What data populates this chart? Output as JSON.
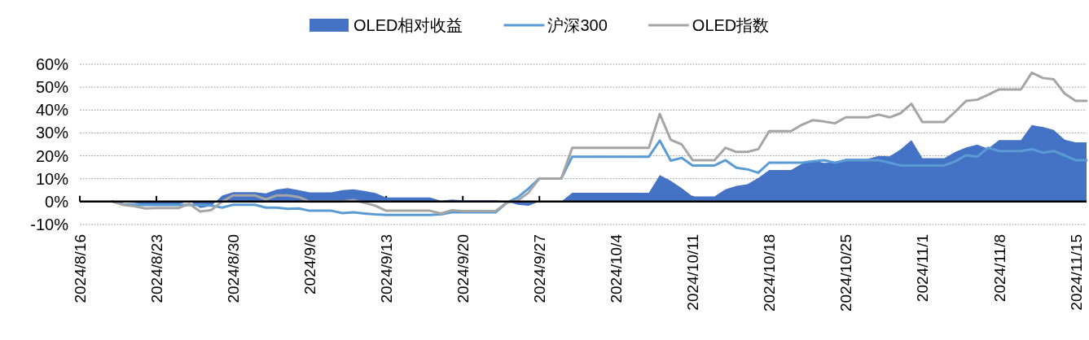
{
  "chart_data": {
    "type": "line",
    "x": [
      "2024-08-19",
      "2024-08-20",
      "2024-08-21",
      "2024-08-22",
      "2024-08-23",
      "2024-08-25",
      "2024-08-26",
      "2024-08-27",
      "2024-08-28",
      "2024-08-29",
      "2024-08-30",
      "2024-09-01",
      "2024-09-02",
      "2024-09-03",
      "2024-09-04",
      "2024-09-05",
      "2024-09-06",
      "2024-09-08",
      "2024-09-09",
      "2024-09-10",
      "2024-09-11",
      "2024-09-12",
      "2024-09-13",
      "2024-09-17",
      "2024-09-18",
      "2024-09-19",
      "2024-09-20",
      "2024-09-22",
      "2024-09-23",
      "2024-09-24",
      "2024-09-25",
      "2024-09-26",
      "2024-09-27",
      "2024-09-29",
      "2024-09-30",
      "2024-10-07",
      "2024-10-08",
      "2024-10-09",
      "2024-10-10",
      "2024-10-11",
      "2024-10-13",
      "2024-10-14",
      "2024-10-15",
      "2024-10-16",
      "2024-10-17",
      "2024-10-18",
      "2024-10-20",
      "2024-10-21",
      "2024-10-22",
      "2024-10-23",
      "2024-10-24",
      "2024-10-25",
      "2024-10-27",
      "2024-10-28",
      "2024-10-29",
      "2024-10-30",
      "2024-10-31",
      "2024-11-01",
      "2024-11-03",
      "2024-11-04",
      "2024-11-05",
      "2024-11-06",
      "2024-11-07",
      "2024-11-08",
      "2024-11-10",
      "2024-11-11",
      "2024-11-12",
      "2024-11-13",
      "2024-11-14",
      "2024-11-15",
      "2024-11-16"
    ],
    "series": [
      {
        "name": "OLED相对收益",
        "type": "area",
        "color": "#4472c4",
        "values": [
          0,
          -0.3,
          -0.6,
          -1.5,
          -1.3,
          -1.3,
          0.4,
          -2.8,
          -2.0,
          2.6,
          4.1,
          4.1,
          3.6,
          5.3,
          5.9,
          5.0,
          4.0,
          4.0,
          5.0,
          5.4,
          4.7,
          3.8,
          1.8,
          1.8,
          0.4,
          0.9,
          0.6,
          0.6,
          0.6,
          0,
          -1.4,
          -1.8,
          0,
          0,
          3.9,
          3.9,
          11.6,
          9.1,
          5.9,
          2.3,
          2.3,
          5.4,
          6.9,
          7.6,
          10.3,
          13.8,
          13.8,
          16.6,
          18,
          16.9,
          17.2,
          18.7,
          18.7,
          19.9,
          19.8,
          22.8,
          26.9,
          19,
          19,
          21.7,
          23.7,
          24.9,
          23.1,
          26.9,
          26.9,
          33.4,
          32.6,
          31.3,
          27,
          25.9,
          25.9
        ]
      },
      {
        "name": "沪深300",
        "color": "#5b9bd5",
        "values": [
          0,
          -1.2,
          -1.4,
          -1.5,
          -1.5,
          -1.5,
          -1.4,
          -1.5,
          -1.7,
          -2.6,
          -1.4,
          -1.4,
          -2.6,
          -2.6,
          -3.2,
          -3.0,
          -4,
          -4,
          -5,
          -4.7,
          -5.2,
          -5.6,
          -5.8,
          -5.8,
          -5.6,
          -4.7,
          -4.7,
          -4.7,
          -4.7,
          -0.5,
          1.8,
          5.7,
          10.1,
          10.1,
          19.6,
          19.6,
          26.7,
          17.9,
          19.1,
          15.8,
          15.8,
          18.1,
          14.8,
          14.1,
          12.6,
          17,
          17,
          17,
          17.6,
          18.1,
          17,
          18.1,
          18.1,
          18.1,
          17,
          15.8,
          15.8,
          15.8,
          15.8,
          17.6,
          20.3,
          19.6,
          23.5,
          22.1,
          22.1,
          22.9,
          21.4,
          22.1,
          20.2,
          18.1,
          18.1
        ]
      },
      {
        "name": "OLED指数",
        "color": "#a5a5a5",
        "values": [
          0,
          -1.5,
          -2,
          -3,
          -2.8,
          -2.8,
          -1,
          -4.3,
          -3.7,
          0,
          2.7,
          2.7,
          1.0,
          2.7,
          2.7,
          2.0,
          0,
          0,
          0,
          0.7,
          -0.5,
          -1.8,
          -4,
          -4,
          -5.2,
          -3.8,
          -4.1,
          -4.1,
          -4.1,
          -0.5,
          0.4,
          3.9,
          10.1,
          10.1,
          23.5,
          23.5,
          38.3,
          27,
          25,
          18.1,
          18.1,
          23.5,
          21.7,
          21.7,
          22.9,
          30.8,
          30.8,
          33.6,
          35.6,
          35,
          34.2,
          36.8,
          36.8,
          38,
          36.8,
          38.6,
          42.7,
          34.8,
          34.8,
          39.3,
          44,
          44.5,
          46.6,
          49,
          49,
          56.3,
          54,
          53.4,
          47.2,
          44,
          44
        ]
      }
    ],
    "xlim": [
      "2024-08-16",
      "2024-11-16"
    ],
    "xticks": [
      {
        "value": "2024-08-16",
        "label": "2024/8/16"
      },
      {
        "value": "2024-08-23",
        "label": "2024/8/23"
      },
      {
        "value": "2024-08-30",
        "label": "2024/8/30"
      },
      {
        "value": "2024-09-06",
        "label": "2024/9/6"
      },
      {
        "value": "2024-09-13",
        "label": "2024/9/13"
      },
      {
        "value": "2024-09-20",
        "label": "2024/9/20"
      },
      {
        "value": "2024-09-27",
        "label": "2024/9/27"
      },
      {
        "value": "2024-10-04",
        "label": "2024/10/4"
      },
      {
        "value": "2024-10-11",
        "label": "2024/10/11"
      },
      {
        "value": "2024-10-18",
        "label": "2024/10/18"
      },
      {
        "value": "2024-10-25",
        "label": "2024/10/25"
      },
      {
        "value": "2024-11-01",
        "label": "2024/11/1"
      },
      {
        "value": "2024-11-08",
        "label": "2024/11/8"
      },
      {
        "value": "2024-11-15",
        "label": "2024/11/15"
      }
    ],
    "ylim": [
      -10,
      60
    ],
    "yticks": [
      {
        "value": -10,
        "label": "-10%"
      },
      {
        "value": 0,
        "label": "0%"
      },
      {
        "value": 10,
        "label": "10%"
      },
      {
        "value": 20,
        "label": "20%"
      },
      {
        "value": 30,
        "label": "30%"
      },
      {
        "value": 40,
        "label": "40%"
      },
      {
        "value": 50,
        "label": "50%"
      },
      {
        "value": 60,
        "label": "60%"
      }
    ],
    "grid": "y",
    "legend": "top",
    "marker": "none",
    "line_style": "solid"
  }
}
